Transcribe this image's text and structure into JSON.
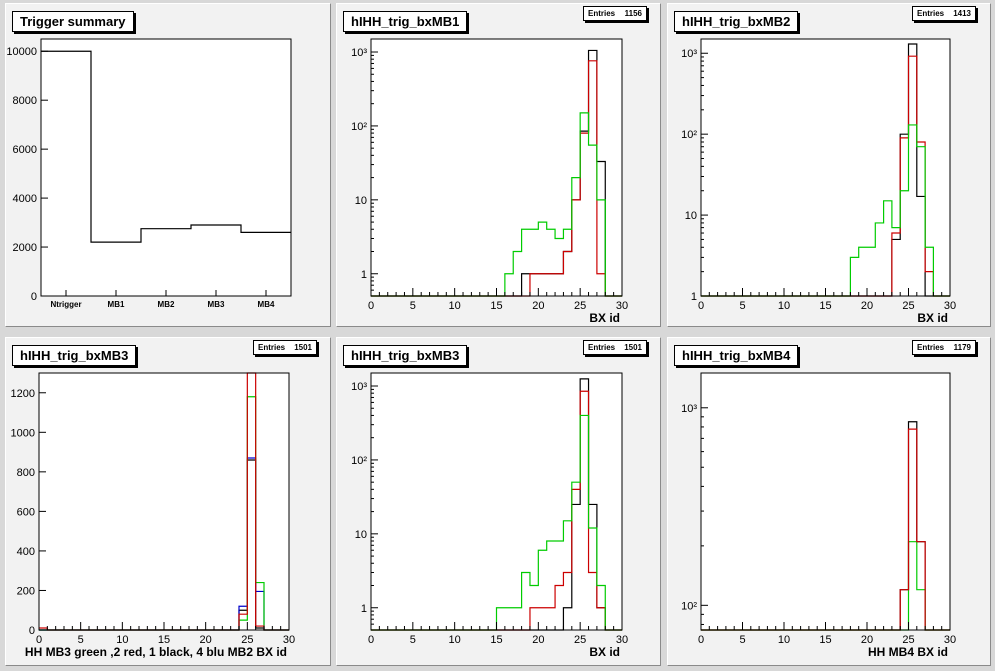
{
  "chart_data": [
    {
      "id": "p0",
      "type": "histogram",
      "title": "Trigger summary",
      "xlabel": "",
      "logy": false,
      "xlim": [
        0,
        5
      ],
      "ylim": [
        0,
        10500
      ],
      "categories": [
        "Ntrigger",
        "MB1",
        "MB2",
        "MB3",
        "MB4"
      ],
      "yticks": [
        0,
        2000,
        4000,
        6000,
        8000,
        10000
      ],
      "series": [
        {
          "color": "#000000",
          "values": [
            10000,
            2200,
            2750,
            2900,
            2600
          ]
        }
      ]
    },
    {
      "id": "p1",
      "type": "histogram",
      "title": "hIHH_trig_bxMB1",
      "stats": {
        "label": "Entries",
        "value": "1156"
      },
      "xlabel": "BX id",
      "logy": true,
      "xlim": [
        0,
        30
      ],
      "ylim": [
        0.5,
        1500
      ],
      "xticks": [
        0,
        5,
        10,
        15,
        20,
        25,
        30
      ],
      "yticks": [
        1,
        10,
        100,
        1000
      ],
      "ytick_labels": [
        "1",
        "10",
        "10²",
        "10³"
      ],
      "series": [
        {
          "color": "#000000",
          "x": [
            18,
            19,
            20,
            21,
            22,
            23,
            24,
            25,
            26,
            27
          ],
          "y": [
            1,
            1,
            1,
            1,
            1,
            2,
            10,
            85,
            1050,
            33
          ]
        },
        {
          "color": "#cc0000",
          "x": [
            19,
            20,
            21,
            22,
            23,
            24,
            25,
            26,
            27
          ],
          "y": [
            1,
            1,
            1,
            1,
            2,
            10,
            80,
            760,
            1
          ]
        },
        {
          "color": "#00cc00",
          "x": [
            16,
            17,
            18,
            19,
            20,
            21,
            22,
            23,
            24,
            25,
            26,
            27
          ],
          "y": [
            1,
            2,
            4,
            4,
            5,
            4,
            3,
            4,
            20,
            150,
            55,
            10
          ]
        }
      ]
    },
    {
      "id": "p2",
      "type": "histogram",
      "title": "hIHH_trig_bxMB2",
      "stats": {
        "label": "Entries",
        "value": "1413"
      },
      "xlabel": "BX id",
      "logy": true,
      "xlim": [
        0,
        30
      ],
      "ylim": [
        1,
        1500
      ],
      "xticks": [
        0,
        5,
        10,
        15,
        20,
        25,
        30
      ],
      "yticks": [
        1,
        10,
        100,
        1000
      ],
      "ytick_labels": [
        "1",
        "10",
        "10²",
        "10³"
      ],
      "series": [
        {
          "color": "#000000",
          "x": [
            23,
            24,
            25,
            26
          ],
          "y": [
            5,
            100,
            1300,
            17
          ]
        },
        {
          "color": "#cc0000",
          "x": [
            23,
            24,
            25,
            26,
            27
          ],
          "y": [
            6,
            90,
            920,
            80,
            2
          ]
        },
        {
          "color": "#00cc00",
          "x": [
            18,
            19,
            20,
            21,
            22,
            23,
            24,
            25,
            26,
            27
          ],
          "y": [
            3,
            4,
            4,
            8,
            15,
            7,
            20,
            130,
            70,
            4
          ]
        }
      ]
    },
    {
      "id": "p3",
      "type": "histogram",
      "title": "hIHH_trig_bxMB3",
      "stats": {
        "label": "Entries",
        "value": "1501"
      },
      "xlabel": "HH  MB3 green ,2 red, 1 black, 4 blu     MB2 BX id",
      "logy": false,
      "xlim": [
        0,
        30
      ],
      "ylim": [
        0,
        1300
      ],
      "xticks": [
        0,
        5,
        10,
        15,
        20,
        25,
        30
      ],
      "yticks": [
        0,
        200,
        400,
        600,
        800,
        1000,
        1200
      ],
      "series": [
        {
          "color": "#000000",
          "x": [
            24,
            25,
            26
          ],
          "y": [
            100,
            860,
            10
          ]
        },
        {
          "color": "#0000cc",
          "x": [
            24,
            25,
            26
          ],
          "y": [
            120,
            870,
            195
          ]
        },
        {
          "color": "#00cc00",
          "x": [
            24,
            25,
            26
          ],
          "y": [
            50,
            1180,
            240
          ]
        },
        {
          "color": "#cc0000",
          "x": [
            0,
            24,
            25,
            26
          ],
          "y": [
            10,
            80,
            1300,
            20
          ]
        }
      ]
    },
    {
      "id": "p4",
      "type": "histogram",
      "title": "hIHH_trig_bxMB3",
      "stats": {
        "label": "Entries",
        "value": "1501"
      },
      "xlabel": "BX id",
      "logy": true,
      "xlim": [
        0,
        30
      ],
      "ylim": [
        0.5,
        1500
      ],
      "xticks": [
        0,
        5,
        10,
        15,
        20,
        25,
        30
      ],
      "yticks": [
        1,
        10,
        100,
        1000
      ],
      "ytick_labels": [
        "1",
        "10",
        "10²",
        "10³"
      ],
      "series": [
        {
          "color": "#000000",
          "x": [
            23,
            24,
            25,
            26,
            27
          ],
          "y": [
            1,
            25,
            1250,
            25,
            1
          ]
        },
        {
          "color": "#cc0000",
          "x": [
            19,
            20,
            21,
            22,
            23,
            24,
            25,
            26,
            27
          ],
          "y": [
            1,
            1,
            1,
            2,
            3,
            40,
            850,
            3,
            1
          ]
        },
        {
          "color": "#00cc00",
          "x": [
            15,
            16,
            17,
            18,
            19,
            20,
            21,
            22,
            23,
            24,
            25,
            26,
            27
          ],
          "y": [
            1,
            1,
            1,
            3,
            2,
            6,
            8,
            8,
            15,
            50,
            400,
            12,
            2
          ]
        }
      ]
    },
    {
      "id": "p5",
      "type": "histogram",
      "title": "hIHH_trig_bxMB4",
      "stats": {
        "label": "Entries",
        "value": "1179"
      },
      "xlabel": "HH MB4 BX id",
      "logy": true,
      "xlim": [
        0,
        30
      ],
      "ylim": [
        75,
        1500
      ],
      "xticks": [
        0,
        5,
        10,
        15,
        20,
        25,
        30
      ],
      "yticks": [
        100,
        1000
      ],
      "ytick_labels": [
        "10²",
        "10³"
      ],
      "series": [
        {
          "color": "#000000",
          "x": [
            24,
            25,
            26
          ],
          "y": [
            120,
            850,
            210
          ]
        },
        {
          "color": "#00cc00",
          "x": [
            25,
            26
          ],
          "y": [
            210,
            120
          ]
        },
        {
          "color": "#cc0000",
          "x": [
            24,
            25,
            26
          ],
          "y": [
            120,
            780,
            210
          ]
        }
      ]
    }
  ]
}
